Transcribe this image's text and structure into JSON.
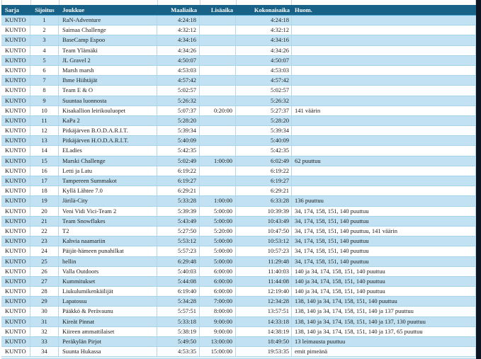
{
  "colors": {
    "header_bg": "#186287",
    "header_text": "#ffffff",
    "header_border": "#3d9bcd",
    "row_alt_bg": "#c2e2f3",
    "row_bg": "#ffffff",
    "row_separator": "#a6d4ec",
    "grid_line": "#b0d7ea",
    "edge_strip": "#0d1522",
    "text": "#1a1a1a"
  },
  "table": {
    "headers": [
      {
        "key": "sarja",
        "label": "Sarja",
        "align": "left"
      },
      {
        "key": "sijoitus",
        "label": "Sijoitus",
        "align": "center"
      },
      {
        "key": "joukkue",
        "label": "Joukkue",
        "align": "left"
      },
      {
        "key": "maaliaika",
        "label": "Maaliaika",
        "align": "right"
      },
      {
        "key": "lisaaika",
        "label": "Lisäaika",
        "align": "right"
      },
      {
        "key": "kokonaisaika",
        "label": "Kokonaisaika",
        "align": "right"
      },
      {
        "key": "huom",
        "label": "Huom.",
        "align": "left"
      }
    ],
    "rows": [
      {
        "sarja": "KUNTO",
        "sijoitus": "1",
        "joukkue": "RaN-Adventure",
        "maaliaika": "4:24:18",
        "lisaaika": "",
        "kokonaisaika": "4:24:18",
        "huom": ""
      },
      {
        "sarja": "KUNTO",
        "sijoitus": "2",
        "joukkue": "Saimaa Challenge",
        "maaliaika": "4:32:12",
        "lisaaika": "",
        "kokonaisaika": "4:32:12",
        "huom": ""
      },
      {
        "sarja": "KUNTO",
        "sijoitus": "3",
        "joukkue": "BaseCamp Espoo",
        "maaliaika": "4:34:16",
        "lisaaika": "",
        "kokonaisaika": "4:34:16",
        "huom": ""
      },
      {
        "sarja": "KUNTO",
        "sijoitus": "4",
        "joukkue": "Team Ylämäki",
        "maaliaika": "4:34:26",
        "lisaaika": "",
        "kokonaisaika": "4:34:26",
        "huom": ""
      },
      {
        "sarja": "KUNTO",
        "sijoitus": "5",
        "joukkue": "JL Gravel 2",
        "maaliaika": "4:50:07",
        "lisaaika": "",
        "kokonaisaika": "4:50:07",
        "huom": ""
      },
      {
        "sarja": "KUNTO",
        "sijoitus": "6",
        "joukkue": "Marsh marsh",
        "maaliaika": "4:53:03",
        "lisaaika": "",
        "kokonaisaika": "4:53:03",
        "huom": ""
      },
      {
        "sarja": "KUNTO",
        "sijoitus": "7",
        "joukkue": "Ihme Hiihtäjät",
        "maaliaika": "4:57:42",
        "lisaaika": "",
        "kokonaisaika": "4:57:42",
        "huom": ""
      },
      {
        "sarja": "KUNTO",
        "sijoitus": "8",
        "joukkue": "Team E & O",
        "maaliaika": "5:02:57",
        "lisaaika": "",
        "kokonaisaika": "5:02:57",
        "huom": ""
      },
      {
        "sarja": "KUNTO",
        "sijoitus": "9",
        "joukkue": "Suuntaa luonnosta",
        "maaliaika": "5:26:32",
        "lisaaika": "",
        "kokonaisaika": "5:26:32",
        "huom": ""
      },
      {
        "sarja": "KUNTO",
        "sijoitus": "10",
        "joukkue": "Kisakallion leirikouluopet",
        "maaliaika": "5:07:37",
        "lisaaika": "0:20:00",
        "kokonaisaika": "5:27:37",
        "huom": "141 väärin"
      },
      {
        "sarja": "KUNTO",
        "sijoitus": "11",
        "joukkue": "KaPa 2",
        "maaliaika": "5:28:20",
        "lisaaika": "",
        "kokonaisaika": "5:28:20",
        "huom": ""
      },
      {
        "sarja": "KUNTO",
        "sijoitus": "12",
        "joukkue": "Pitkäjärven B.O.D.A.R.I.T.",
        "maaliaika": "5:39:34",
        "lisaaika": "",
        "kokonaisaika": "5:39:34",
        "huom": ""
      },
      {
        "sarja": "KUNTO",
        "sijoitus": "13",
        "joukkue": "Pitkäjärven H.O.D.A.R.I.T.",
        "maaliaika": "5:40:09",
        "lisaaika": "",
        "kokonaisaika": "5:40:09",
        "huom": ""
      },
      {
        "sarja": "KUNTO",
        "sijoitus": "14",
        "joukkue": "ELadies",
        "maaliaika": "5:42:35",
        "lisaaika": "",
        "kokonaisaika": "5:42:35",
        "huom": ""
      },
      {
        "sarja": "KUNTO",
        "sijoitus": "15",
        "joukkue": "Marski Challenge",
        "maaliaika": "5:02:49",
        "lisaaika": "1:00:00",
        "kokonaisaika": "6:02:49",
        "huom": "62 puuttuu"
      },
      {
        "sarja": "KUNTO",
        "sijoitus": "16",
        "joukkue": "Letti ja Latu",
        "maaliaika": "6:19:22",
        "lisaaika": "",
        "kokonaisaika": "6:19:22",
        "huom": ""
      },
      {
        "sarja": "KUNTO",
        "sijoitus": "17",
        "joukkue": "Tampereen Summakot",
        "maaliaika": "6:19:27",
        "lisaaika": "",
        "kokonaisaika": "6:19:27",
        "huom": ""
      },
      {
        "sarja": "KUNTO",
        "sijoitus": "18",
        "joukkue": "Kyllä Lähtee 7.0",
        "maaliaika": "6:29:21",
        "lisaaika": "",
        "kokonaisaika": "6:29:21",
        "huom": ""
      },
      {
        "sarja": "KUNTO",
        "sijoitus": "19",
        "joukkue": "Järilä-City",
        "maaliaika": "5:33:28",
        "lisaaika": "1:00:00",
        "kokonaisaika": "6:33:28",
        "huom": "136 puuttuu"
      },
      {
        "sarja": "KUNTO",
        "sijoitus": "20",
        "joukkue": "Veni Vidi Vici-Team 2",
        "maaliaika": "5:39:39",
        "lisaaika": "5:00:00",
        "kokonaisaika": "10:39:39",
        "huom": "34, 174, 158, 151, 140 puuttuu"
      },
      {
        "sarja": "KUNTO",
        "sijoitus": "21",
        "joukkue": "Team Snowflakes",
        "maaliaika": "5:43:49",
        "lisaaika": "5:00:00",
        "kokonaisaika": "10:43:49",
        "huom": "34, 174, 158, 151, 140 puuttuu"
      },
      {
        "sarja": "KUNTO",
        "sijoitus": "22",
        "joukkue": "T2",
        "maaliaika": "5:27:50",
        "lisaaika": "5:20:00",
        "kokonaisaika": "10:47:50",
        "huom": "34, 174, 158, 151, 140 puuttuu, 141 väärin"
      },
      {
        "sarja": "KUNTO",
        "sijoitus": "23",
        "joukkue": "Kahvia naamariin",
        "maaliaika": "5:53:12",
        "lisaaika": "5:00:00",
        "kokonaisaika": "10:53:12",
        "huom": "34, 174, 158, 151, 140 puuttuu"
      },
      {
        "sarja": "KUNTO",
        "sijoitus": "24",
        "joukkue": "Päijät-hämeen punahilkat",
        "maaliaika": "5:57:23",
        "lisaaika": "5:00:00",
        "kokonaisaika": "10:57:23",
        "huom": "34, 174, 158, 151, 140 puuttuu"
      },
      {
        "sarja": "KUNTO",
        "sijoitus": "25",
        "joukkue": "hellin",
        "maaliaika": "6:29:48",
        "lisaaika": "5:00:00",
        "kokonaisaika": "11:29:48",
        "huom": "34, 174, 158, 151, 140 puuttuu"
      },
      {
        "sarja": "KUNTO",
        "sijoitus": "26",
        "joukkue": "Valla Outdoors",
        "maaliaika": "5:40:03",
        "lisaaika": "6:00:00",
        "kokonaisaika": "11:40:03",
        "huom": "140 ja 34, 174, 158, 151, 140 puuttuu"
      },
      {
        "sarja": "KUNTO",
        "sijoitus": "27",
        "joukkue": "Kummitukset",
        "maaliaika": "5:44:08",
        "lisaaika": "6:00:00",
        "kokonaisaika": "11:44:08",
        "huom": "140 ja 34, 174, 158, 151, 140 puuttuu"
      },
      {
        "sarja": "KUNTO",
        "sijoitus": "28",
        "joukkue": "Liukulumikenkäilijät",
        "maaliaika": "6:19:40",
        "lisaaika": "6:00:00",
        "kokonaisaika": "12:19:40",
        "huom": "140 ja 34, 174, 158, 151, 140 puuttuu"
      },
      {
        "sarja": "KUNTO",
        "sijoitus": "29",
        "joukkue": "Lapatossu",
        "maaliaika": "5:34:28",
        "lisaaika": "7:00:00",
        "kokonaisaika": "12:34:28",
        "huom": "138, 140 ja 34, 174, 158, 151, 140 puuttuu"
      },
      {
        "sarja": "KUNTO",
        "sijoitus": "30",
        "joukkue": "Pääkkö & Perävaunu",
        "maaliaika": "5:57:51",
        "lisaaika": "8:00:00",
        "kokonaisaika": "13:57:51",
        "huom": "138, 140 ja 34, 174, 158, 151, 140 ja 137 puuttuu"
      },
      {
        "sarja": "KUNTO",
        "sijoitus": "31",
        "joukkue": "Kireät Pinnat",
        "maaliaika": "5:33:18",
        "lisaaika": "9:00:00",
        "kokonaisaika": "14:33:18",
        "huom": "138, 140 ja 34, 174, 158, 151, 140 ja 137, 130 puuttuu"
      },
      {
        "sarja": "KUNTO",
        "sijoitus": "32",
        "joukkue": "Kiireen ammattilaiset",
        "maaliaika": "5:38:19",
        "lisaaika": "9:00:00",
        "kokonaisaika": "14:38:19",
        "huom": "138, 140 ja 34, 174, 158, 151, 140 ja 137, 65 puuttuu"
      },
      {
        "sarja": "KUNTO",
        "sijoitus": "33",
        "joukkue": "Peräkylän Pirjot",
        "maaliaika": "5:49:50",
        "lisaaika": "13:00:00",
        "kokonaisaika": "18:49:50",
        "huom": "13 leimausta puuttuu"
      },
      {
        "sarja": "KUNTO",
        "sijoitus": "34",
        "joukkue": "Suunta Hukassa",
        "maaliaika": "4:53:35",
        "lisaaika": "15:00:00",
        "kokonaisaika": "19:53:35",
        "huom": "emit pimeänä"
      }
    ]
  }
}
